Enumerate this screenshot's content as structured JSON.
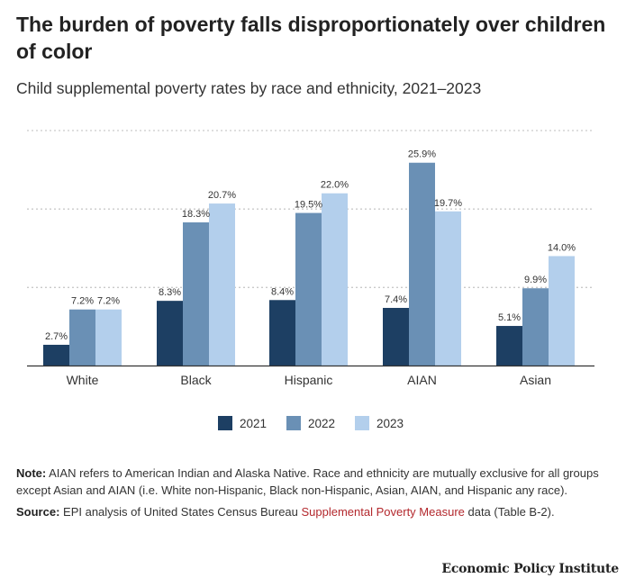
{
  "title": "The burden of poverty falls disproportionately over children of color",
  "subtitle": "Child supplemental poverty rates by race and ethnicity, 2021–2023",
  "colors": {
    "2021": "#1d3f63",
    "2022": "#6a90b5",
    "2023": "#b3cfec"
  },
  "chart_data": {
    "type": "bar",
    "title": "The burden of poverty falls disproportionately over children of color",
    "subtitle": "Child supplemental poverty rates by race and ethnicity, 2021–2023",
    "categories": [
      "White",
      "Black",
      "Hispanic",
      "AIAN",
      "Asian"
    ],
    "series": [
      {
        "name": "2021",
        "values": [
          2.7,
          8.3,
          8.4,
          7.4,
          5.1
        ],
        "labels": [
          "2.7%",
          "8.3%",
          "8.4%",
          "7.4%",
          "5.1%"
        ]
      },
      {
        "name": "2022",
        "values": [
          7.2,
          18.3,
          19.5,
          25.9,
          9.9
        ],
        "labels": [
          "7.2%",
          "18.3%",
          "19.5%",
          "25.9%",
          "9.9%"
        ]
      },
      {
        "name": "2023",
        "values": [
          7.2,
          20.7,
          22.0,
          19.7,
          14.0
        ],
        "labels": [
          "7.2%",
          "20.7%",
          "22.0%",
          "19.7%",
          "14.0%"
        ]
      }
    ],
    "ylim": [
      0,
      30
    ],
    "grid": true,
    "legend": "bottom-center",
    "xlabel": "",
    "ylabel": ""
  },
  "notes": {
    "note_label": "Note:",
    "note_text": " AIAN refers to American Indian and Alaska Native. Race and ethnicity are mutually exclusive for all groups except Asian and AIAN (i.e. White non-Hispanic, Black non-Hispanic, Asian, AIAN, and Hispanic any race).",
    "source_label": "Source:",
    "source_text_before": " EPI analysis of United States Census Bureau ",
    "source_link": "Supplemental Poverty Measure",
    "source_text_after": " data (Table B-2)."
  },
  "brand": "Economic Policy Institute"
}
